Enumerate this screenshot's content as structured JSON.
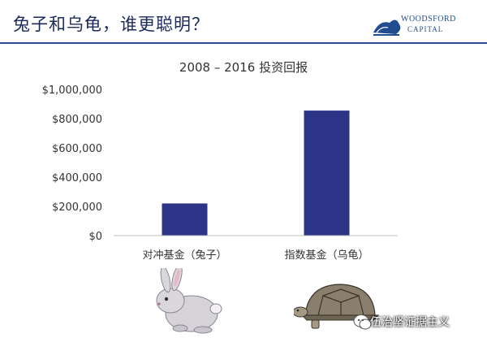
{
  "header": {
    "title": "兔子和乌龟，谁更聪明？",
    "logo_line1": "WOODSFORD",
    "logo_line2": "CAPITAL"
  },
  "watermark": {
    "text": "伍治坚证据主义"
  },
  "chart_data": {
    "type": "bar",
    "title": "2008 – 2016 投资回报",
    "categories": [
      "对冲基金（兔子）",
      "指数基金（乌龟）"
    ],
    "values": [
      220000,
      855000
    ],
    "ylim": [
      0,
      1000000
    ],
    "yticks": [
      "$0",
      "$200,000",
      "$400,000",
      "$600,000",
      "$800,000",
      "$1,000,000"
    ],
    "ytick_values": [
      0,
      200000,
      400000,
      600000,
      800000,
      1000000
    ],
    "bar_color": "#2b3486",
    "grid": false,
    "xlabel": "",
    "ylabel": ""
  },
  "colors": {
    "title": "#1b2b5e",
    "rule": "#2a4a8f",
    "bar": "#2b3486"
  },
  "icons": [
    "woodsford-logo-icon",
    "rabbit-icon",
    "tortoise-icon",
    "wechat-icon"
  ]
}
